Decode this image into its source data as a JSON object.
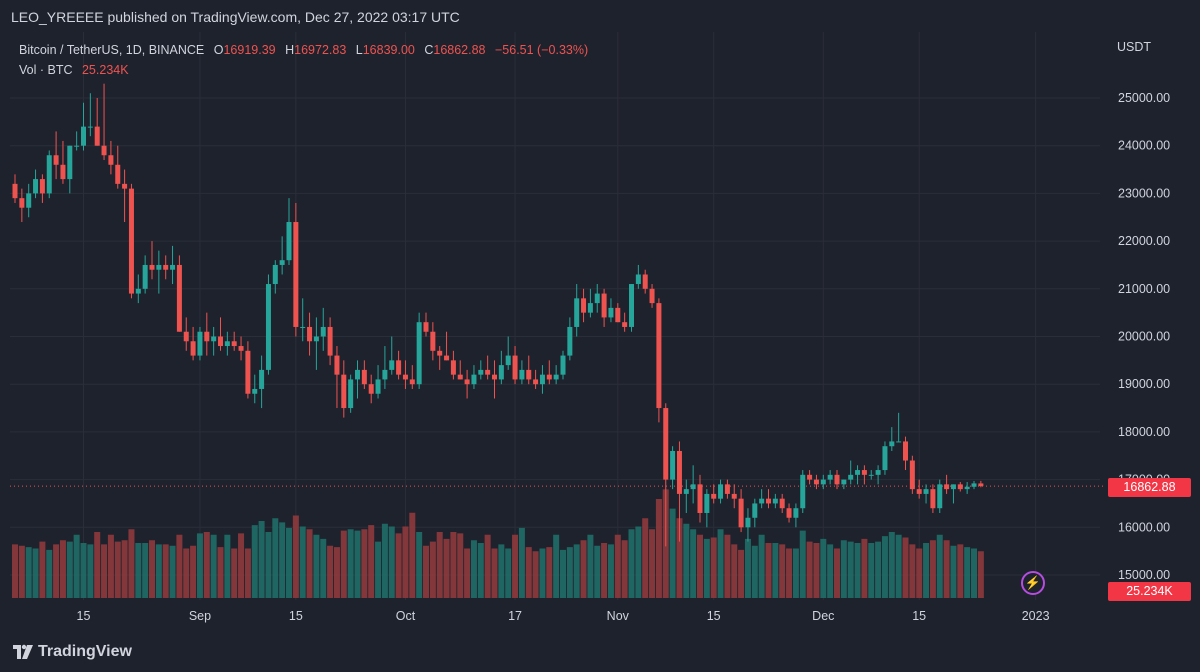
{
  "header": {
    "publisher": "LEO_YREEEE published on TradingView.com, Dec 27, 2022 03:17 UTC"
  },
  "legend": {
    "symbol": "Bitcoin / TetherUS, 1D, BINANCE",
    "open_label": "O",
    "open": "16919.39",
    "high_label": "H",
    "high": "16972.83",
    "low_label": "L",
    "low": "16839.00",
    "close_label": "C",
    "close": "16862.88",
    "change": "−56.51 (−0.33%)",
    "vol_label": "Vol · BTC",
    "vol": "25.234K"
  },
  "axis": {
    "unit": "USDT",
    "last_price": "16862.88",
    "last_volume": "25.234K"
  },
  "footer": {
    "brand": "TradingView"
  },
  "colors": {
    "up": "#26a69a",
    "down": "#ef5350",
    "background": "#1e222d",
    "grid": "#2a2e39",
    "text": "#d1d4dc",
    "accent": "#b64de0"
  },
  "chart_data": {
    "type": "candlestick",
    "y_ticks": [
      "25000.00",
      "24000.00",
      "23000.00",
      "22000.00",
      "21000.00",
      "20000.00",
      "19000.00",
      "18000.00",
      "17000.00",
      "16000.00",
      "15000.00"
    ],
    "ylim": [
      14800,
      25900
    ],
    "x_ticks": [
      {
        "label": "15",
        "index": 10
      },
      {
        "label": "Sep",
        "index": 27
      },
      {
        "label": "15",
        "index": 41
      },
      {
        "label": "Oct",
        "index": 57
      },
      {
        "label": "17",
        "index": 73
      },
      {
        "label": "Nov",
        "index": 88
      },
      {
        "label": "15",
        "index": 102
      },
      {
        "label": "Dec",
        "index": 118
      },
      {
        "label": "15",
        "index": 132
      },
      {
        "label": "2023",
        "index": 149
      }
    ],
    "candles": [
      [
        23200,
        23400,
        22800,
        22900
      ],
      [
        22900,
        23100,
        22400,
        22700
      ],
      [
        22700,
        23200,
        22500,
        23000
      ],
      [
        23000,
        23500,
        22900,
        23300
      ],
      [
        23300,
        23400,
        22800,
        23000
      ],
      [
        23000,
        23900,
        22900,
        23800
      ],
      [
        23800,
        24300,
        23300,
        23600
      ],
      [
        23600,
        24100,
        23200,
        23300
      ],
      [
        23300,
        24000,
        23000,
        24000
      ],
      [
        24000,
        24300,
        23900,
        24000
      ],
      [
        24000,
        24900,
        23900,
        24400
      ],
      [
        24400,
        25100,
        24200,
        24400
      ],
      [
        24400,
        25000,
        24000,
        24000
      ],
      [
        24000,
        25300,
        23700,
        23800
      ],
      [
        23800,
        24100,
        23400,
        23600
      ],
      [
        23600,
        24000,
        23100,
        23200
      ],
      [
        23200,
        23500,
        22400,
        23100
      ],
      [
        23100,
        23200,
        20800,
        20900
      ],
      [
        20900,
        21300,
        20700,
        21000
      ],
      [
        21000,
        21700,
        20900,
        21500
      ],
      [
        21500,
        22000,
        21200,
        21400
      ],
      [
        21400,
        21800,
        20900,
        21500
      ],
      [
        21500,
        21700,
        21200,
        21400
      ],
      [
        21400,
        21900,
        21100,
        21500
      ],
      [
        21500,
        21700,
        20100,
        20100
      ],
      [
        20100,
        20400,
        19700,
        19900
      ],
      [
        19900,
        20200,
        19500,
        19600
      ],
      [
        19600,
        20200,
        19500,
        20100
      ],
      [
        20100,
        20500,
        19600,
        19900
      ],
      [
        19900,
        20200,
        19600,
        20000
      ],
      [
        20000,
        20400,
        19700,
        19800
      ],
      [
        19800,
        20100,
        19600,
        19900
      ],
      [
        19900,
        20100,
        19700,
        19800
      ],
      [
        19800,
        20000,
        19500,
        19700
      ],
      [
        19700,
        19900,
        18700,
        18800
      ],
      [
        18800,
        19200,
        18600,
        18900
      ],
      [
        18900,
        19600,
        18500,
        19300
      ],
      [
        19300,
        21300,
        19200,
        21100
      ],
      [
        21100,
        21600,
        20900,
        21500
      ],
      [
        21500,
        22100,
        21300,
        21600
      ],
      [
        21600,
        22900,
        21500,
        22400
      ],
      [
        22400,
        22800,
        20000,
        20200
      ],
      [
        20200,
        20800,
        19900,
        20200
      ],
      [
        20200,
        20500,
        19600,
        19900
      ],
      [
        19900,
        20400,
        19300,
        20000
      ],
      [
        20000,
        20600,
        19700,
        20200
      ],
      [
        20200,
        20400,
        19400,
        19600
      ],
      [
        19600,
        19800,
        18500,
        19200
      ],
      [
        19200,
        19500,
        18300,
        18500
      ],
      [
        18500,
        19200,
        18400,
        19100
      ],
      [
        19100,
        19500,
        18700,
        19300
      ],
      [
        19300,
        19500,
        18900,
        19000
      ],
      [
        19000,
        19200,
        18600,
        18800
      ],
      [
        18800,
        19400,
        18700,
        19100
      ],
      [
        19100,
        19800,
        18900,
        19300
      ],
      [
        19300,
        20000,
        19200,
        19500
      ],
      [
        19500,
        19700,
        19100,
        19200
      ],
      [
        19200,
        19500,
        18900,
        19100
      ],
      [
        19100,
        19400,
        18900,
        19000
      ],
      [
        19000,
        20500,
        18900,
        20300
      ],
      [
        20300,
        20500,
        20000,
        20100
      ],
      [
        20100,
        20300,
        19500,
        19700
      ],
      [
        19700,
        19800,
        19300,
        19600
      ],
      [
        19600,
        20100,
        19500,
        19500
      ],
      [
        19500,
        19700,
        19100,
        19200
      ],
      [
        19200,
        19500,
        19100,
        19100
      ],
      [
        19100,
        19300,
        18700,
        19000
      ],
      [
        19000,
        19400,
        18900,
        19200
      ],
      [
        19200,
        19500,
        19100,
        19300
      ],
      [
        19300,
        19600,
        19100,
        19200
      ],
      [
        19200,
        19500,
        18700,
        19100
      ],
      [
        19100,
        19700,
        19000,
        19400
      ],
      [
        19400,
        20000,
        19300,
        19600
      ],
      [
        19600,
        19800,
        19000,
        19100
      ],
      [
        19100,
        19500,
        19000,
        19300
      ],
      [
        19300,
        19600,
        19000,
        19100
      ],
      [
        19100,
        19300,
        18900,
        19000
      ],
      [
        19000,
        19400,
        18800,
        19200
      ],
      [
        19200,
        19500,
        19000,
        19100
      ],
      [
        19100,
        19400,
        19000,
        19200
      ],
      [
        19200,
        19700,
        19100,
        19600
      ],
      [
        19600,
        20400,
        19500,
        20200
      ],
      [
        20200,
        21100,
        20000,
        20800
      ],
      [
        20800,
        21000,
        20300,
        20500
      ],
      [
        20500,
        21000,
        20400,
        20700
      ],
      [
        20700,
        21100,
        20500,
        20900
      ],
      [
        20900,
        21000,
        20200,
        20400
      ],
      [
        20400,
        20800,
        20300,
        20600
      ],
      [
        20600,
        20700,
        20300,
        20300
      ],
      [
        20300,
        20500,
        20100,
        20200
      ],
      [
        20200,
        21100,
        20100,
        21100
      ],
      [
        21100,
        21500,
        21000,
        21300
      ],
      [
        21300,
        21400,
        20900,
        21000
      ],
      [
        21000,
        21100,
        20600,
        20700
      ],
      [
        20700,
        20800,
        18200,
        18500
      ],
      [
        18500,
        18600,
        15600,
        17000
      ],
      [
        17000,
        17700,
        16800,
        17600
      ],
      [
        17600,
        17800,
        15700,
        16700
      ],
      [
        16700,
        17000,
        16300,
        16800
      ],
      [
        16800,
        17300,
        16500,
        16900
      ],
      [
        16900,
        17100,
        16100,
        16300
      ],
      [
        16300,
        16800,
        16000,
        16700
      ],
      [
        16700,
        16900,
        16500,
        16600
      ],
      [
        16600,
        17000,
        16500,
        16900
      ],
      [
        16900,
        17000,
        16600,
        16700
      ],
      [
        16700,
        16900,
        16400,
        16600
      ],
      [
        16600,
        16800,
        15900,
        16000
      ],
      [
        16000,
        16400,
        15700,
        16200
      ],
      [
        16200,
        16600,
        16000,
        16500
      ],
      [
        16500,
        16800,
        16400,
        16600
      ],
      [
        16600,
        16800,
        16400,
        16500
      ],
      [
        16500,
        16700,
        16400,
        16600
      ],
      [
        16600,
        16700,
        16300,
        16400
      ],
      [
        16400,
        16500,
        16100,
        16200
      ],
      [
        16200,
        16500,
        16000,
        16400
      ],
      [
        16400,
        17200,
        16300,
        17100
      ],
      [
        17100,
        17200,
        16900,
        17000
      ],
      [
        17000,
        17100,
        16800,
        16900
      ],
      [
        16900,
        17100,
        16800,
        17000
      ],
      [
        17000,
        17200,
        16900,
        17100
      ],
      [
        17100,
        17200,
        16800,
        16900
      ],
      [
        16900,
        17000,
        16800,
        17000
      ],
      [
        17000,
        17400,
        16900,
        17100
      ],
      [
        17100,
        17300,
        16900,
        17200
      ],
      [
        17200,
        17300,
        16900,
        17100
      ],
      [
        17100,
        17200,
        17000,
        17100
      ],
      [
        17100,
        17300,
        16900,
        17200
      ],
      [
        17200,
        17800,
        17100,
        17700
      ],
      [
        17700,
        18100,
        17600,
        17800
      ],
      [
        17800,
        18400,
        17800,
        17800
      ],
      [
        17800,
        17900,
        17200,
        17400
      ],
      [
        17400,
        17500,
        16700,
        16800
      ],
      [
        16800,
        17000,
        16600,
        16700
      ],
      [
        16700,
        16900,
        16500,
        16800
      ],
      [
        16800,
        16900,
        16300,
        16400
      ],
      [
        16400,
        17000,
        16300,
        16900
      ],
      [
        16900,
        17100,
        16700,
        16800
      ],
      [
        16800,
        16900,
        16500,
        16900
      ],
      [
        16900,
        16950,
        16750,
        16800
      ],
      [
        16800,
        16950,
        16700,
        16850
      ],
      [
        16850,
        16970,
        16800,
        16920
      ],
      [
        16919.39,
        16972.83,
        16839,
        16862.88
      ]
    ],
    "volume": [
      195,
      190,
      185,
      180,
      205,
      175,
      195,
      210,
      205,
      230,
      200,
      195,
      240,
      195,
      230,
      205,
      210,
      250,
      200,
      200,
      210,
      195,
      195,
      190,
      230,
      180,
      190,
      235,
      240,
      230,
      185,
      230,
      180,
      235,
      180,
      265,
      280,
      240,
      290,
      275,
      255,
      300,
      260,
      250,
      230,
      215,
      190,
      185,
      245,
      250,
      245,
      250,
      265,
      205,
      270,
      260,
      235,
      260,
      310,
      240,
      190,
      205,
      240,
      215,
      240,
      235,
      180,
      210,
      200,
      230,
      180,
      195,
      180,
      230,
      255,
      185,
      170,
      180,
      185,
      230,
      175,
      185,
      195,
      210,
      230,
      190,
      200,
      195,
      230,
      210,
      250,
      260,
      290,
      250,
      360,
      395,
      325,
      290,
      270,
      250,
      230,
      215,
      220,
      250,
      230,
      195,
      175,
      215,
      190,
      230,
      200,
      200,
      195,
      180,
      180,
      245,
      205,
      200,
      215,
      195,
      180,
      210,
      205,
      200,
      215,
      200,
      205,
      225,
      240,
      230,
      220,
      195,
      180,
      200,
      210,
      230,
      210,
      190,
      195,
      185,
      180,
      170
    ]
  }
}
